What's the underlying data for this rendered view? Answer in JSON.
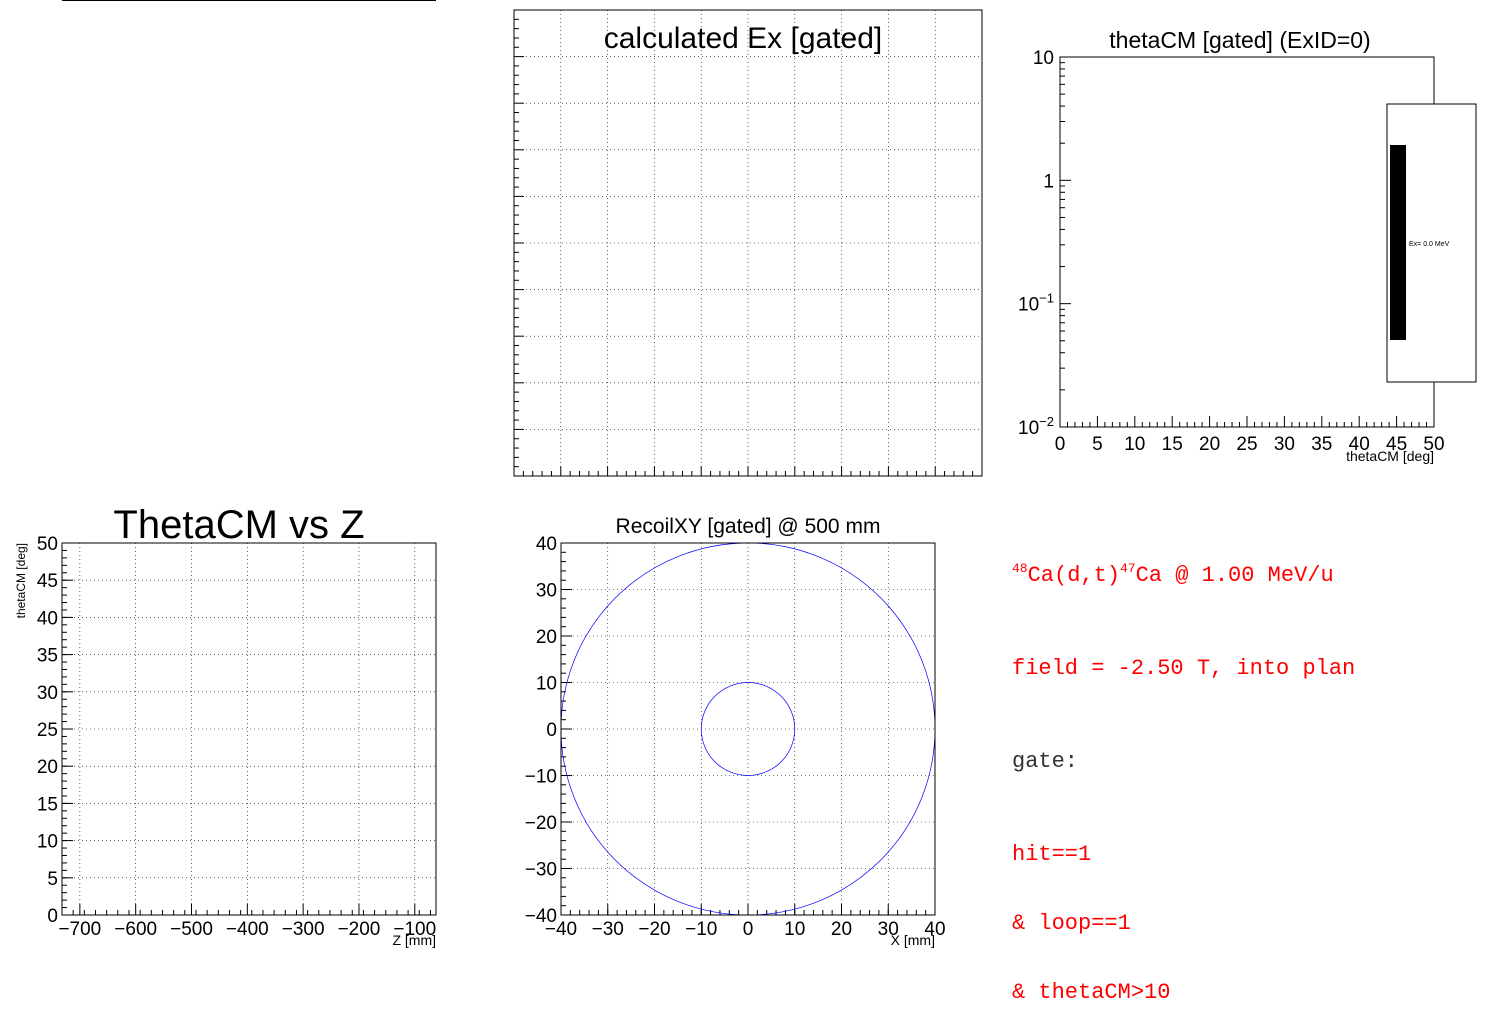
{
  "colors": {
    "axis": "#000000",
    "grid": "#000000",
    "circle": "#0000ff",
    "info_text": "#ff0000",
    "info_gate": "#333333",
    "legend_fill": "#000000"
  },
  "chart_data": [
    {
      "id": "empty-pad",
      "type": "scatter",
      "title": "",
      "series": []
    },
    {
      "id": "ex-gated",
      "type": "bar",
      "title": "calculated Ex [gated]",
      "xlabel": "",
      "ylabel": "",
      "grid": true,
      "series": []
    },
    {
      "id": "thetacm-gated",
      "type": "bar",
      "title": "thetaCM [gated] (ExID=0)",
      "xlabel": "thetaCM [deg]",
      "ylabel": "",
      "xlim": [
        0,
        50
      ],
      "ylim": [
        0.01,
        10
      ],
      "log_y": true,
      "grid": false,
      "x_ticks": [
        "0",
        "5",
        "10",
        "15",
        "20",
        "25",
        "30",
        "35",
        "40",
        "45",
        "50"
      ],
      "y_ticks": [
        {
          "value": 10,
          "label": "10"
        },
        {
          "value": 1,
          "label": "1"
        },
        {
          "value": 0.1,
          "label": "10",
          "exp": "−1"
        },
        {
          "value": 0.01,
          "label": "10",
          "exp": "−2"
        }
      ],
      "legend": {
        "position": "right",
        "entries": [
          "Ex=  0.0 MeV"
        ]
      },
      "series": []
    },
    {
      "id": "thetacm-vs-z",
      "type": "scatter",
      "title": "ThetaCM vs Z",
      "xlabel": "Z [mm]",
      "ylabel": "thetaCM [deg]",
      "xlim": [
        -732,
        -62
      ],
      "ylim": [
        0,
        50
      ],
      "grid": true,
      "x_ticks": [
        "−700",
        "−600",
        "−500",
        "−400",
        "−300",
        "−200",
        "−100"
      ],
      "y_ticks": [
        "0",
        "5",
        "10",
        "15",
        "20",
        "25",
        "30",
        "35",
        "40",
        "45",
        "50"
      ],
      "series": []
    },
    {
      "id": "recoil-xy",
      "type": "scatter",
      "title": "RecoilXY [gated] @  500 mm",
      "xlabel": "X [mm]",
      "ylabel": "",
      "xlim": [
        -40,
        40
      ],
      "ylim": [
        -40,
        40
      ],
      "grid": true,
      "x_ticks": [
        "−40",
        "−30",
        "−20",
        "−10",
        "0",
        "10",
        "20",
        "30",
        "40"
      ],
      "y_ticks": [
        "−40",
        "−30",
        "−20",
        "−10",
        "0",
        "10",
        "20",
        "30",
        "40"
      ],
      "circles": [
        {
          "name": "outer",
          "cx": 0,
          "cy": 0,
          "r": 40
        },
        {
          "name": "inner",
          "cx": 0,
          "cy": 0,
          "r": 10
        }
      ],
      "series": []
    }
  ],
  "info": {
    "reaction": {
      "a1": "48",
      "t1": "Ca(d,t)",
      "a2": "47",
      "t2": "Ca @ 1.00 MeV/u"
    },
    "field": "field = -2.50 T, into plan",
    "gate_label": "gate:",
    "gate_lines": [
      "hit==1",
      "& loop==1",
      "& thetaCM>10"
    ]
  }
}
